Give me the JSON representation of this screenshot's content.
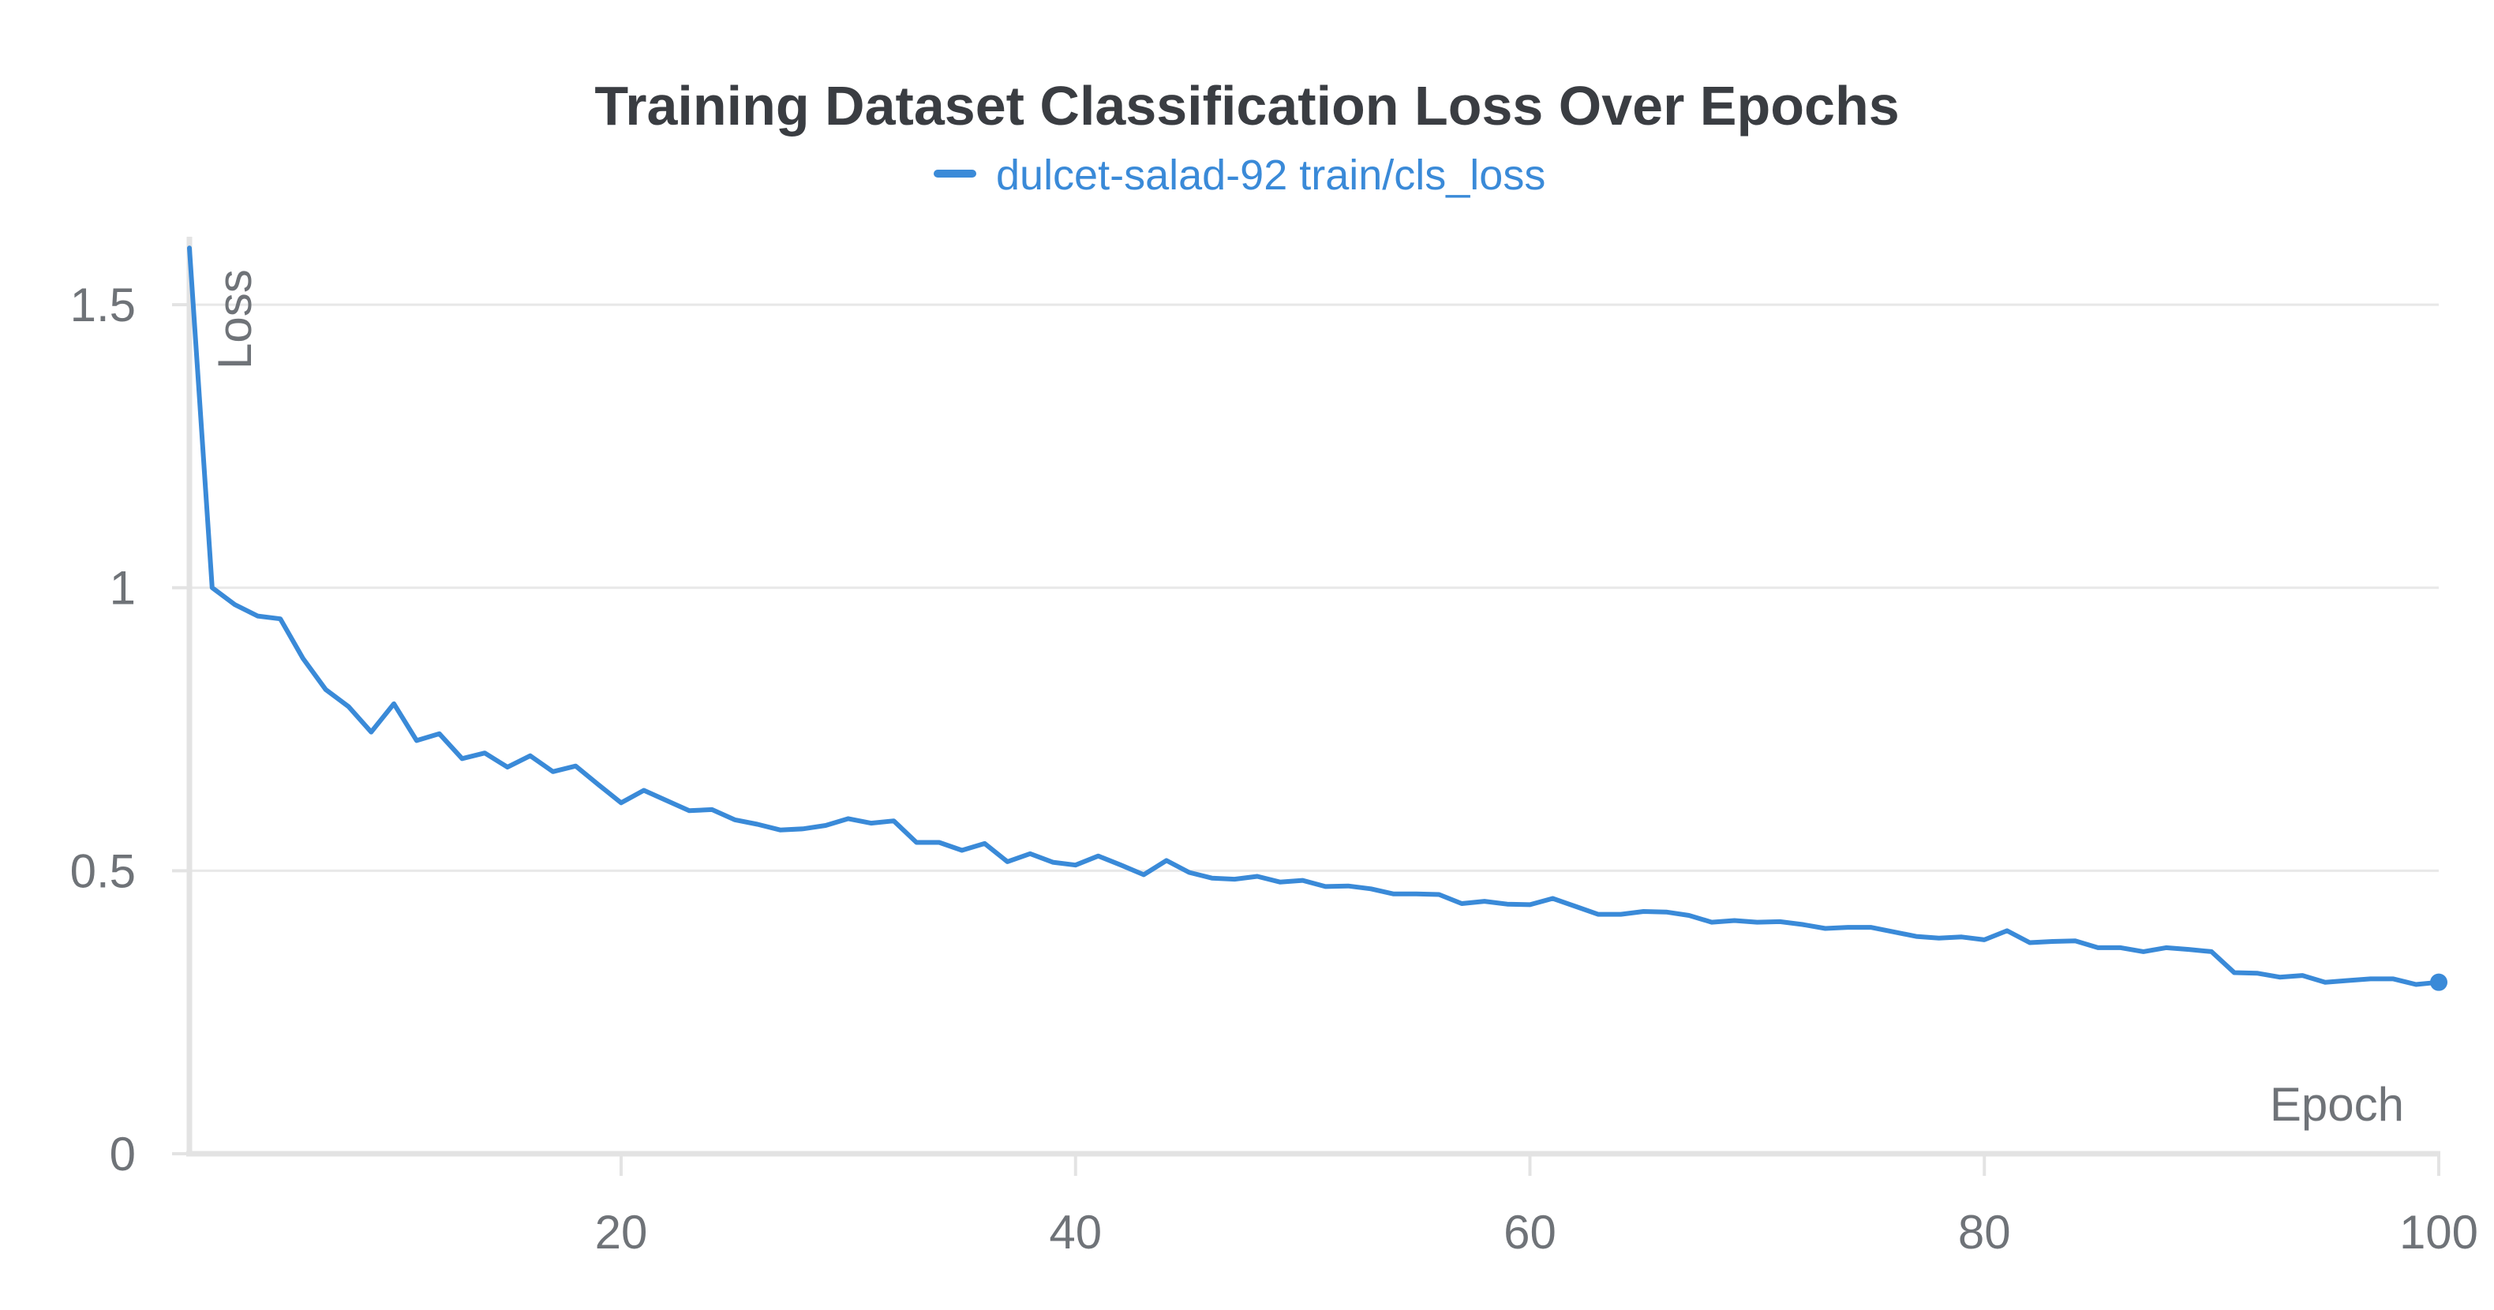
{
  "colors": {
    "series": "#3a8ad8",
    "grid": "#e8e8e8",
    "axis": "#e3e3e3",
    "text": "#6f7378",
    "title": "#3a3d42"
  },
  "chart_data": {
    "type": "line",
    "title": "Training Dataset Classification Loss Over Epochs",
    "xlabel": "Epoch",
    "ylabel": "Loss",
    "xlim": [
      1,
      100
    ],
    "ylim": [
      0,
      1.62
    ],
    "x_ticks": [
      20,
      40,
      60,
      80,
      100
    ],
    "x_tick_labels": [
      "20",
      "40",
      "60",
      "80",
      "100"
    ],
    "y_ticks": [
      0,
      0.5,
      1,
      1.5
    ],
    "y_tick_labels": [
      "0",
      "0.5",
      "1",
      "1.5"
    ],
    "grid": true,
    "legend_position": "top-center",
    "series": [
      {
        "name": "dulcet-salad-92 train/cls_loss",
        "x": [
          1,
          2,
          3,
          4,
          5,
          6,
          7,
          8,
          9,
          10,
          11,
          12,
          13,
          14,
          15,
          16,
          17,
          18,
          19,
          20,
          21,
          22,
          23,
          24,
          25,
          26,
          27,
          28,
          29,
          30,
          31,
          32,
          33,
          34,
          35,
          36,
          37,
          38,
          39,
          40,
          41,
          42,
          43,
          44,
          45,
          46,
          47,
          48,
          49,
          50,
          51,
          52,
          53,
          54,
          55,
          56,
          57,
          58,
          59,
          60,
          61,
          62,
          63,
          64,
          65,
          66,
          67,
          68,
          69,
          70,
          71,
          72,
          73,
          74,
          75,
          76,
          77,
          78,
          79,
          80,
          81,
          82,
          83,
          84,
          85,
          86,
          87,
          88,
          89,
          90,
          91,
          92,
          93,
          94,
          95,
          96,
          97,
          98,
          99,
          100
        ],
        "y": [
          1.6,
          1.0,
          0.97,
          0.95,
          0.945,
          0.875,
          0.82,
          0.79,
          0.745,
          0.795,
          0.73,
          0.742,
          0.698,
          0.708,
          0.683,
          0.703,
          0.675,
          0.685,
          0.652,
          0.62,
          0.642,
          0.624,
          0.606,
          0.608,
          0.59,
          0.582,
          0.572,
          0.574,
          0.58,
          0.592,
          0.584,
          0.588,
          0.55,
          0.55,
          0.536,
          0.548,
          0.516,
          0.53,
          0.515,
          0.51,
          0.526,
          0.51,
          0.493,
          0.518,
          0.497,
          0.487,
          0.485,
          0.49,
          0.48,
          0.483,
          0.472,
          0.473,
          0.468,
          0.459,
          0.459,
          0.458,
          0.442,
          0.446,
          0.441,
          0.44,
          0.451,
          0.437,
          0.423,
          0.423,
          0.428,
          0.427,
          0.421,
          0.409,
          0.412,
          0.409,
          0.41,
          0.405,
          0.398,
          0.4,
          0.4,
          0.392,
          0.384,
          0.381,
          0.383,
          0.378,
          0.394,
          0.373,
          0.375,
          0.376,
          0.364,
          0.364,
          0.357,
          0.364,
          0.361,
          0.357,
          0.32,
          0.319,
          0.312,
          0.315,
          0.303,
          0.306,
          0.309,
          0.309,
          0.299,
          0.303
        ]
      }
    ]
  }
}
